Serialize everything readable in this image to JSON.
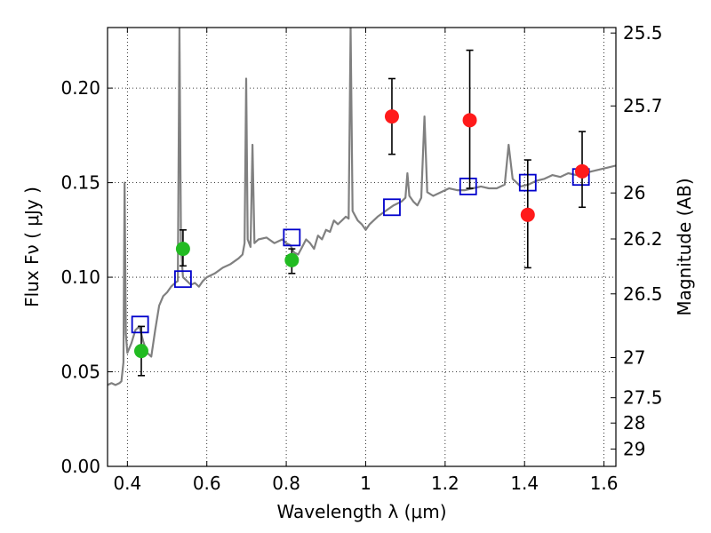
{
  "chart_data": {
    "type": "scatter",
    "xlabel": "Wavelength  λ (μm)",
    "ylabel": "Flux  Fν  ( μJy )",
    "y2label": "Magnitude (AB)",
    "xlim": [
      0.35,
      1.63
    ],
    "ylim": [
      0.0,
      0.232
    ],
    "grid": true,
    "x_ticks": [
      {
        "value": 0.4,
        "label": "0.4"
      },
      {
        "value": 0.6,
        "label": "0.6"
      },
      {
        "value": 0.8,
        "label": "0.8"
      },
      {
        "value": 1.0,
        "label": "1"
      },
      {
        "value": 1.2,
        "label": "1.2"
      },
      {
        "value": 1.4,
        "label": "1.4"
      },
      {
        "value": 1.6,
        "label": "1.6"
      }
    ],
    "y_ticks": [
      {
        "value": 0.0,
        "label": "0.00"
      },
      {
        "value": 0.05,
        "label": "0.05"
      },
      {
        "value": 0.1,
        "label": "0.10"
      },
      {
        "value": 0.15,
        "label": "0.15"
      },
      {
        "value": 0.2,
        "label": "0.20"
      }
    ],
    "y2_ticks": [
      {
        "mag": 25.5,
        "label": "25.5"
      },
      {
        "mag": 25.7,
        "label": "25.7"
      },
      {
        "mag": 26.0,
        "label": "26"
      },
      {
        "mag": 26.2,
        "label": "26.2"
      },
      {
        "mag": 26.5,
        "label": "26.5"
      },
      {
        "mag": 27.0,
        "label": "27"
      },
      {
        "mag": 27.5,
        "label": "27.5"
      },
      {
        "mag": 28.0,
        "label": "28"
      },
      {
        "mag": 29.0,
        "label": "29"
      }
    ],
    "colors": {
      "spectrum": "#808080",
      "model_box": "#0000cc",
      "green": "#22bb22",
      "red": "#ff1a1a",
      "errorbar": "#000000"
    },
    "spectrum": [
      [
        0.35,
        0.043
      ],
      [
        0.36,
        0.044
      ],
      [
        0.37,
        0.043
      ],
      [
        0.38,
        0.044
      ],
      [
        0.385,
        0.045
      ],
      [
        0.39,
        0.055
      ],
      [
        0.393,
        0.15
      ],
      [
        0.396,
        0.07
      ],
      [
        0.4,
        0.06
      ],
      [
        0.41,
        0.065
      ],
      [
        0.42,
        0.072
      ],
      [
        0.43,
        0.074
      ],
      [
        0.44,
        0.066
      ],
      [
        0.45,
        0.06
      ],
      [
        0.46,
        0.058
      ],
      [
        0.47,
        0.072
      ],
      [
        0.48,
        0.085
      ],
      [
        0.49,
        0.09
      ],
      [
        0.5,
        0.092
      ],
      [
        0.51,
        0.095
      ],
      [
        0.52,
        0.097
      ],
      [
        0.527,
        0.098
      ],
      [
        0.531,
        0.232
      ],
      [
        0.535,
        0.115
      ],
      [
        0.54,
        0.1
      ],
      [
        0.55,
        0.098
      ],
      [
        0.56,
        0.096
      ],
      [
        0.57,
        0.097
      ],
      [
        0.58,
        0.095
      ],
      [
        0.59,
        0.098
      ],
      [
        0.6,
        0.1
      ],
      [
        0.62,
        0.102
      ],
      [
        0.64,
        0.105
      ],
      [
        0.66,
        0.107
      ],
      [
        0.68,
        0.11
      ],
      [
        0.69,
        0.112
      ],
      [
        0.695,
        0.118
      ],
      [
        0.699,
        0.205
      ],
      [
        0.703,
        0.12
      ],
      [
        0.71,
        0.116
      ],
      [
        0.715,
        0.17
      ],
      [
        0.72,
        0.118
      ],
      [
        0.73,
        0.12
      ],
      [
        0.75,
        0.121
      ],
      [
        0.77,
        0.118
      ],
      [
        0.79,
        0.12
      ],
      [
        0.8,
        0.118
      ],
      [
        0.81,
        0.117
      ],
      [
        0.82,
        0.113
      ],
      [
        0.83,
        0.112
      ],
      [
        0.84,
        0.116
      ],
      [
        0.85,
        0.12
      ],
      [
        0.86,
        0.118
      ],
      [
        0.87,
        0.115
      ],
      [
        0.88,
        0.122
      ],
      [
        0.89,
        0.12
      ],
      [
        0.9,
        0.125
      ],
      [
        0.91,
        0.124
      ],
      [
        0.92,
        0.13
      ],
      [
        0.93,
        0.128
      ],
      [
        0.94,
        0.13
      ],
      [
        0.95,
        0.132
      ],
      [
        0.957,
        0.131
      ],
      [
        0.962,
        0.232
      ],
      [
        0.967,
        0.135
      ],
      [
        0.98,
        0.13
      ],
      [
        0.99,
        0.128
      ],
      [
        1.0,
        0.125
      ],
      [
        1.01,
        0.128
      ],
      [
        1.02,
        0.13
      ],
      [
        1.03,
        0.132
      ],
      [
        1.05,
        0.135
      ],
      [
        1.07,
        0.138
      ],
      [
        1.09,
        0.14
      ],
      [
        1.1,
        0.142
      ],
      [
        1.105,
        0.155
      ],
      [
        1.11,
        0.143
      ],
      [
        1.12,
        0.14
      ],
      [
        1.13,
        0.138
      ],
      [
        1.14,
        0.142
      ],
      [
        1.148,
        0.185
      ],
      [
        1.155,
        0.145
      ],
      [
        1.17,
        0.143
      ],
      [
        1.19,
        0.145
      ],
      [
        1.21,
        0.147
      ],
      [
        1.23,
        0.146
      ],
      [
        1.25,
        0.146
      ],
      [
        1.27,
        0.147
      ],
      [
        1.29,
        0.148
      ],
      [
        1.31,
        0.147
      ],
      [
        1.33,
        0.147
      ],
      [
        1.35,
        0.149
      ],
      [
        1.36,
        0.17
      ],
      [
        1.37,
        0.152
      ],
      [
        1.39,
        0.148
      ],
      [
        1.41,
        0.149
      ],
      [
        1.43,
        0.151
      ],
      [
        1.45,
        0.152
      ],
      [
        1.47,
        0.154
      ],
      [
        1.49,
        0.153
      ],
      [
        1.51,
        0.155
      ],
      [
        1.53,
        0.154
      ],
      [
        1.55,
        0.155
      ],
      [
        1.57,
        0.156
      ],
      [
        1.59,
        0.157
      ],
      [
        1.61,
        0.158
      ],
      [
        1.63,
        0.159
      ]
    ],
    "model_points": [
      {
        "x": 0.432,
        "y": 0.075
      },
      {
        "x": 0.54,
        "y": 0.099
      },
      {
        "x": 0.814,
        "y": 0.121
      },
      {
        "x": 1.066,
        "y": 0.137
      },
      {
        "x": 1.258,
        "y": 0.148
      },
      {
        "x": 1.408,
        "y": 0.15
      },
      {
        "x": 1.542,
        "y": 0.153
      }
    ],
    "measured_points": [
      {
        "x": 0.435,
        "y": 0.061,
        "err_low": 0.048,
        "err_high": 0.074,
        "color": "green"
      },
      {
        "x": 0.54,
        "y": 0.115,
        "err_low": 0.106,
        "err_high": 0.125,
        "color": "green"
      },
      {
        "x": 0.814,
        "y": 0.109,
        "err_low": 0.102,
        "err_high": 0.115,
        "color": "green"
      },
      {
        "x": 1.066,
        "y": 0.185,
        "err_low": 0.165,
        "err_high": 0.205,
        "color": "red"
      },
      {
        "x": 1.262,
        "y": 0.183,
        "err_low": 0.147,
        "err_high": 0.22,
        "color": "red"
      },
      {
        "x": 1.408,
        "y": 0.133,
        "err_low": 0.105,
        "err_high": 0.162,
        "color": "red"
      },
      {
        "x": 1.545,
        "y": 0.156,
        "err_low": 0.137,
        "err_high": 0.177,
        "color": "red"
      }
    ]
  }
}
